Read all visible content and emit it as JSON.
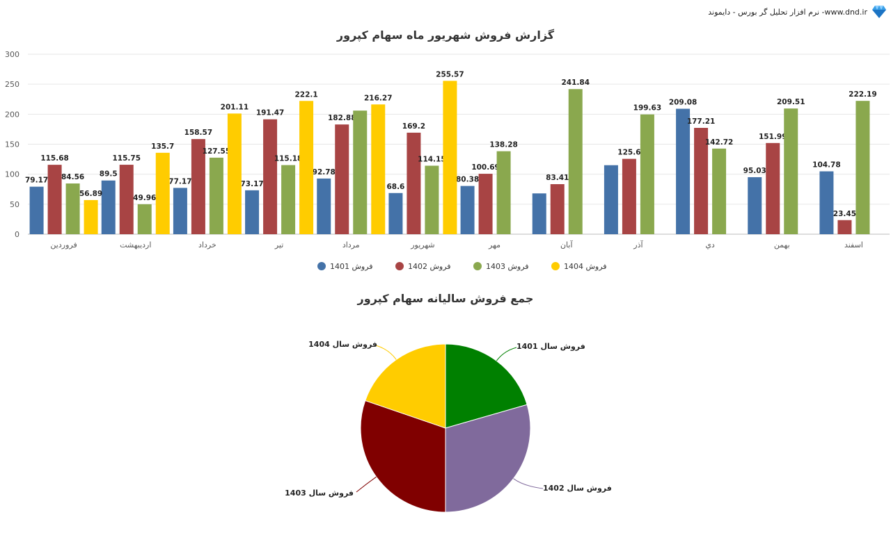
{
  "header": {
    "brand_text": "نرم افزار تحلیل گر بورس - دایموند -www.dnd.ir",
    "logo_icon": "diamond-icon"
  },
  "chart_data": [
    {
      "type": "bar",
      "title": "گزارش فروش شهریور ماه سهام کپرور",
      "categories": [
        "فروردین",
        "اردیبهشت",
        "خرداد",
        "تیر",
        "مرداد",
        "شهریور",
        "مهر",
        "آبان",
        "آذر",
        "دي",
        "بهمن",
        "اسفند"
      ],
      "ylim": [
        0,
        300
      ],
      "yticks": [
        0,
        50,
        100,
        150,
        200,
        250,
        300
      ],
      "grid": true,
      "legend_position": "bottom",
      "series": [
        {
          "name": "فروش 1401",
          "color": "#4472a8",
          "values": [
            79.17,
            89.5,
            77.17,
            73.17,
            92.78,
            68.6,
            80.38,
            68,
            115,
            209.08,
            95.03,
            104.78
          ],
          "labels": [
            "79.17",
            "89.5",
            "77.17",
            "73.17",
            "92.78",
            "68.6",
            "80.38",
            "",
            "",
            "209.08",
            "95.03",
            "104.78"
          ]
        },
        {
          "name": "فروش 1402",
          "color": "#a84444",
          "values": [
            115.68,
            115.75,
            158.57,
            191.47,
            182.88,
            169.2,
            100.69,
            83.41,
            125.6,
            177.21,
            151.99,
            23.45
          ],
          "labels": [
            "115.68",
            "115.75",
            "158.57",
            "191.47",
            "182.88",
            "169.2",
            "100.69",
            "83.41",
            "125.6",
            "177.21",
            "151.99",
            "23.45"
          ]
        },
        {
          "name": "فروش 1403",
          "color": "#8aa84e",
          "values": [
            84.56,
            49.96,
            127.55,
            115.18,
            206,
            114.15,
            138.28,
            241.84,
            199.63,
            142.72,
            209.51,
            222.19
          ],
          "labels": [
            "84.56",
            "49.96",
            "127.55",
            "115.18",
            "",
            "114.15",
            "138.28",
            "241.84",
            "199.63",
            "142.72",
            "209.51",
            "222.19"
          ]
        },
        {
          "name": "فروش 1404",
          "color": "#ffcc00",
          "values": [
            56.89,
            135.7,
            201.11,
            222.1,
            216.27,
            255.57,
            null,
            null,
            null,
            null,
            null,
            null
          ],
          "labels": [
            "56.89",
            "135.7",
            "201.11",
            "222.1",
            "216.27",
            "255.57",
            "",
            "",
            "",
            "",
            "",
            ""
          ]
        }
      ]
    },
    {
      "type": "pie",
      "title": "جمع فروش سالیانه سهام کپرور",
      "slices": [
        {
          "label": "فروش سال 1401",
          "value": 20.5,
          "color": "#008000"
        },
        {
          "label": "فروش سال 1402",
          "value": 29.5,
          "color": "#806a9c"
        },
        {
          "label": "فروش سال 1403",
          "value": 30.3,
          "color": "#800000"
        },
        {
          "label": "فروش سال 1404",
          "value": 19.7,
          "color": "#ffcc00"
        }
      ]
    }
  ]
}
